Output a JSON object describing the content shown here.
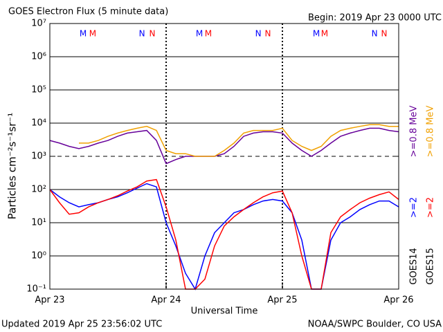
{
  "chart_data": {
    "type": "line",
    "title": "GOES Electron Flux (5 minute data)",
    "subtitle": "Begin: 2019 Apr 23 0000 UTC",
    "xlabel": "Universal Time",
    "ylabel": "Particles cm⁻²s⁻¹sr⁻¹",
    "footer_left": "Updated 2019 Apr 25 23:56:02 UTC",
    "footer_right": "NOAA/SWPC Boulder, CO USA",
    "log_y": true,
    "grid": true,
    "threshold": 1000,
    "day_lines": true,
    "xlim": [
      0,
      3
    ],
    "xticks": [
      {
        "value": 0,
        "label": "Apr 23"
      },
      {
        "value": 1,
        "label": "Apr 24"
      },
      {
        "value": 2,
        "label": "Apr 25"
      },
      {
        "value": 3,
        "label": "Apr 26"
      }
    ],
    "ylim": [
      0.1,
      10000000
    ],
    "yticks": [
      {
        "value": 0.1,
        "label": "10⁻¹"
      },
      {
        "value": 1,
        "label": "10⁰"
      },
      {
        "value": 10,
        "label": "10¹"
      },
      {
        "value": 100,
        "label": "10²"
      },
      {
        "value": 1000,
        "label": "10³"
      },
      {
        "value": 10000,
        "label": "10⁴"
      },
      {
        "value": 100000,
        "label": "10⁵"
      },
      {
        "value": 1000000,
        "label": "10⁶"
      },
      {
        "value": 10000000,
        "label": "10⁷"
      }
    ],
    "x": [
      0,
      0.0833,
      0.1667,
      0.25,
      0.3333,
      0.4167,
      0.5,
      0.5833,
      0.6667,
      0.75,
      0.8333,
      0.9167,
      1,
      1.0833,
      1.1667,
      1.25,
      1.3333,
      1.4167,
      1.5,
      1.5833,
      1.6667,
      1.75,
      1.8333,
      1.9167,
      2,
      2.0833,
      2.1667,
      2.25,
      2.3333,
      2.4167,
      2.5,
      2.5833,
      2.6667,
      2.75,
      2.8333,
      2.9167,
      3
    ],
    "legend_groups": [
      "GOES14",
      "GOES15"
    ],
    "series": [
      {
        "name": ">=2",
        "group": 0,
        "color": "#0000ff",
        "values": [
          100,
          60,
          40,
          30,
          35,
          40,
          50,
          60,
          80,
          110,
          150,
          120,
          10,
          2,
          0.3,
          0.1,
          1,
          5,
          10,
          20,
          25,
          35,
          45,
          50,
          45,
          20,
          3,
          0.1,
          0.1,
          3,
          10,
          15,
          25,
          35,
          45,
          45,
          30
        ]
      },
      {
        "name": ">=0.8 MeV",
        "group": 0,
        "color": "#660099",
        "values": [
          3000,
          2500,
          2000,
          1700,
          2000,
          2500,
          3000,
          4000,
          5000,
          5500,
          6000,
          3000,
          600,
          800,
          1000,
          1000,
          1000,
          1000,
          1200,
          2000,
          4000,
          5000,
          5500,
          5500,
          5000,
          2500,
          1500,
          1000,
          1500,
          2500,
          4000,
          5000,
          6000,
          7000,
          7000,
          6000,
          5500
        ]
      },
      {
        "name": ">=2",
        "group": 1,
        "color": "#ff0000",
        "values": [
          100,
          40,
          18,
          20,
          30,
          40,
          50,
          65,
          90,
          120,
          180,
          200,
          30,
          3,
          0.1,
          0.1,
          0.2,
          2,
          8,
          15,
          25,
          40,
          60,
          80,
          90,
          20,
          1,
          0.1,
          0.1,
          5,
          15,
          25,
          40,
          55,
          70,
          85,
          50
        ]
      },
      {
        "name": ">=0.8 MeV",
        "group": 1,
        "color": "#f0a000",
        "values": [
          null,
          null,
          null,
          2500,
          2500,
          3000,
          4000,
          5000,
          6000,
          7000,
          8000,
          6000,
          1500,
          1200,
          1200,
          1000,
          1000,
          1000,
          1500,
          2500,
          5000,
          6000,
          6000,
          6000,
          7000,
          3000,
          2000,
          1500,
          2000,
          4000,
          6000,
          7000,
          8000,
          9000,
          9000,
          8000,
          8000
        ]
      }
    ],
    "markers": [
      {
        "label": "M",
        "x": 0.286,
        "color": "#0000ff"
      },
      {
        "label": "M",
        "x": 0.369,
        "color": "#ff0000"
      },
      {
        "label": "N",
        "x": 0.792,
        "color": "#0000ff"
      },
      {
        "label": "N",
        "x": 0.881,
        "color": "#ff0000"
      },
      {
        "label": "M",
        "x": 1.286,
        "color": "#0000ff"
      },
      {
        "label": "M",
        "x": 1.363,
        "color": "#ff0000"
      },
      {
        "label": "N",
        "x": 1.792,
        "color": "#0000ff"
      },
      {
        "label": "N",
        "x": 1.875,
        "color": "#ff0000"
      },
      {
        "label": "M",
        "x": 2.292,
        "color": "#0000ff"
      },
      {
        "label": "M",
        "x": 2.363,
        "color": "#ff0000"
      },
      {
        "label": "N",
        "x": 2.792,
        "color": "#0000ff"
      },
      {
        "label": "N",
        "x": 2.875,
        "color": "#ff0000"
      }
    ]
  }
}
